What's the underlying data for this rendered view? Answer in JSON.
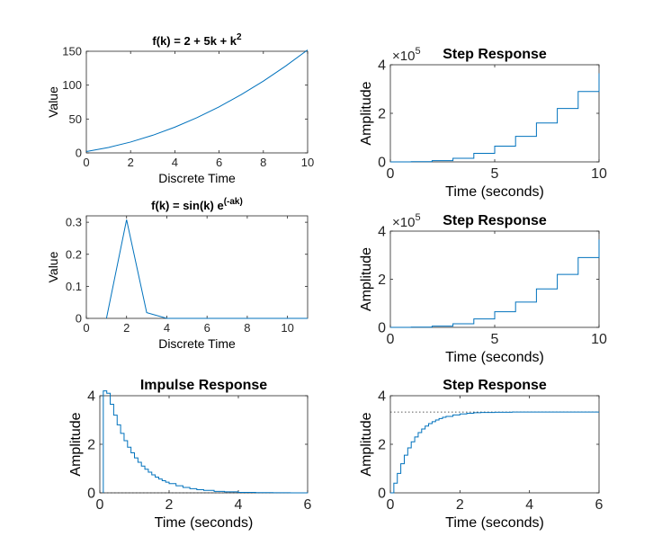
{
  "figure": {
    "background": "#ffffff",
    "line_color": "#0072bd",
    "axis_color": "#262626"
  },
  "chart_data": [
    {
      "id": "p1",
      "type": "line",
      "title": "f(k) = 2 + 5k + k",
      "title_sup": "2",
      "xlabel": "Discrete Time",
      "ylabel": "Value",
      "xlim": [
        0,
        10
      ],
      "ylim": [
        0,
        150
      ],
      "xticks": [
        0,
        2,
        4,
        6,
        8,
        10
      ],
      "yticks": [
        0,
        50,
        100,
        150
      ],
      "series": [
        {
          "x": [
            0,
            1,
            2,
            3,
            4,
            5,
            6,
            7,
            8,
            9,
            10
          ],
          "y": [
            2,
            8,
            16,
            26,
            38,
            52,
            68,
            86,
            106,
            128,
            152
          ]
        }
      ]
    },
    {
      "id": "p2",
      "type": "line",
      "title": "f(k) = sin(k) e",
      "title_sup": "(-ak)",
      "xlabel": "Discrete Time",
      "ylabel": "Value",
      "xlim": [
        0,
        11
      ],
      "ylim": [
        0,
        0.32
      ],
      "xticks": [
        0,
        2,
        4,
        6,
        8,
        10
      ],
      "yticks": [
        0,
        0.1,
        0.2,
        0.3
      ],
      "series": [
        {
          "x": [
            1,
            2,
            3,
            4,
            5,
            6,
            7,
            8,
            9,
            10,
            11
          ],
          "y": [
            0,
            0.308,
            0.018,
            0,
            0,
            0,
            0,
            0,
            0,
            0,
            0
          ]
        }
      ]
    },
    {
      "id": "p3",
      "type": "line",
      "title": "Step Response",
      "xlabel": "Time (seconds)",
      "ylabel": "Amplitude",
      "xlim": [
        0,
        10
      ],
      "ylim": [
        0,
        4
      ],
      "exponent": "5",
      "xticks": [
        0,
        5,
        10
      ],
      "yticks": [
        0,
        2,
        4
      ],
      "staircase": true,
      "series": [
        {
          "x": [
            0,
            1,
            2,
            3,
            4,
            5,
            6,
            7,
            8,
            9,
            10
          ],
          "y": [
            0,
            0.01,
            0.05,
            0.15,
            0.35,
            0.65,
            1.05,
            1.6,
            2.2,
            2.9,
            3.65
          ]
        }
      ]
    },
    {
      "id": "p4",
      "type": "line",
      "title": "Step Response",
      "xlabel": "Time (seconds)",
      "ylabel": "Amplitude",
      "xlim": [
        0,
        10
      ],
      "ylim": [
        0,
        4
      ],
      "exponent": "5",
      "xticks": [
        0,
        5,
        10
      ],
      "yticks": [
        0,
        2,
        4
      ],
      "staircase": true,
      "series": [
        {
          "x": [
            0,
            1,
            2,
            3,
            4,
            5,
            6,
            7,
            8,
            9,
            10
          ],
          "y": [
            0,
            0.01,
            0.05,
            0.15,
            0.35,
            0.65,
            1.05,
            1.6,
            2.2,
            2.9,
            3.65
          ]
        }
      ]
    },
    {
      "id": "p5",
      "type": "line",
      "title": "Impulse Response",
      "xlabel": "Time (seconds)",
      "ylabel": "Amplitude",
      "xlim": [
        0,
        6
      ],
      "ylim": [
        0,
        4
      ],
      "xticks": [
        0,
        2,
        4,
        6
      ],
      "yticks": [
        0,
        2,
        4
      ],
      "staircase": true,
      "reference_line": 0,
      "series": [
        {
          "x": [
            0.1,
            0.1,
            0.2,
            0.3,
            0.4,
            0.5,
            0.6,
            0.7,
            0.8,
            0.9,
            1.0,
            1.1,
            1.2,
            1.3,
            1.4,
            1.5,
            1.6,
            1.7,
            1.8,
            1.9,
            2.0,
            2.2,
            2.4,
            2.6,
            2.8,
            3.0,
            3.3,
            3.6,
            4.0,
            4.5,
            5.0,
            5.5,
            6.0
          ],
          "y": [
            0,
            4.2,
            4.1,
            3.65,
            3.2,
            2.8,
            2.45,
            2.15,
            1.88,
            1.65,
            1.44,
            1.26,
            1.1,
            0.97,
            0.85,
            0.74,
            0.65,
            0.57,
            0.5,
            0.44,
            0.38,
            0.29,
            0.22,
            0.17,
            0.13,
            0.1,
            0.06,
            0.04,
            0.02,
            0.01,
            0.005,
            0.002,
            0
          ]
        }
      ]
    },
    {
      "id": "p6",
      "type": "line",
      "title": "Step Response",
      "xlabel": "Time (seconds)",
      "ylabel": "Amplitude",
      "xlim": [
        0,
        6
      ],
      "ylim": [
        0,
        4
      ],
      "xticks": [
        0,
        2,
        4,
        6
      ],
      "yticks": [
        0,
        2,
        4
      ],
      "staircase": true,
      "reference_line": 3.33,
      "series": [
        {
          "x": [
            0,
            0.1,
            0.2,
            0.3,
            0.4,
            0.5,
            0.6,
            0.7,
            0.8,
            0.9,
            1.0,
            1.1,
            1.2,
            1.3,
            1.4,
            1.5,
            1.6,
            1.8,
            2.0,
            2.2,
            2.4,
            2.6,
            3.0,
            3.5,
            4.0,
            5.0,
            6.0
          ],
          "y": [
            0,
            0.4,
            0.8,
            1.2,
            1.55,
            1.85,
            2.1,
            2.3,
            2.48,
            2.63,
            2.75,
            2.85,
            2.93,
            3.0,
            3.06,
            3.11,
            3.15,
            3.21,
            3.25,
            3.28,
            3.3,
            3.31,
            3.32,
            3.33,
            3.33,
            3.33,
            3.33
          ]
        }
      ]
    }
  ]
}
